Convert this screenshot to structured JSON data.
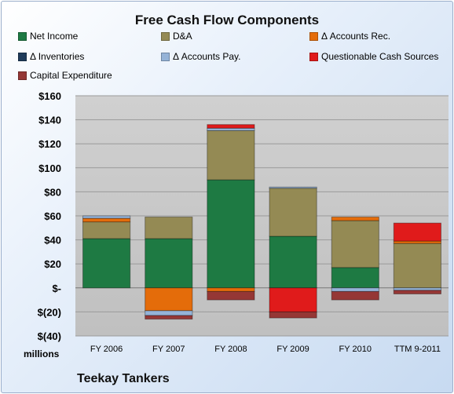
{
  "chart_data": {
    "type": "bar",
    "stacked": true,
    "title": "Free Cash Flow Components",
    "units_label": "millions",
    "company": "Teekay Tankers",
    "categories": [
      "FY 2006",
      "FY 2007",
      "FY 2008",
      "FY 2009",
      "FY 2010",
      "TTM 9-2011"
    ],
    "ylim": [
      -40,
      160
    ],
    "yticks": [
      -40,
      -20,
      0,
      20,
      40,
      60,
      80,
      100,
      120,
      140,
      160
    ],
    "ytick_labels": [
      "$(40)",
      "$(20)",
      "$-",
      "$20",
      "$40",
      "$60",
      "$80",
      "$100",
      "$120",
      "$140",
      "$160"
    ],
    "grid": true,
    "legend_position": "top",
    "series": [
      {
        "name": "Net Income",
        "color": "#1e7a43",
        "values": [
          41,
          41,
          90,
          43,
          17,
          0
        ]
      },
      {
        "name": "D&A",
        "color": "#948a54",
        "values": [
          14,
          18,
          41,
          40,
          39,
          37
        ]
      },
      {
        "name": "Δ Accounts Rec.",
        "color": "#e46c0a",
        "values": [
          3,
          -19,
          -3,
          0,
          3,
          2
        ]
      },
      {
        "name": "Δ Inventories",
        "color": "#1f3b5a",
        "values": [
          0,
          0,
          0,
          0,
          0,
          0
        ]
      },
      {
        "name": "Δ Accounts Pay.",
        "color": "#95b3d7",
        "values": [
          2,
          -4,
          2,
          1,
          -3,
          -2
        ]
      },
      {
        "name": "Questionable Cash Sources",
        "color": "#e01b1b",
        "values": [
          0,
          0,
          3,
          -20,
          0,
          15
        ]
      },
      {
        "name": "Capital Expenditure",
        "color": "#953735",
        "values": [
          0,
          -3,
          -7,
          -5,
          -7,
          -3
        ]
      }
    ]
  }
}
